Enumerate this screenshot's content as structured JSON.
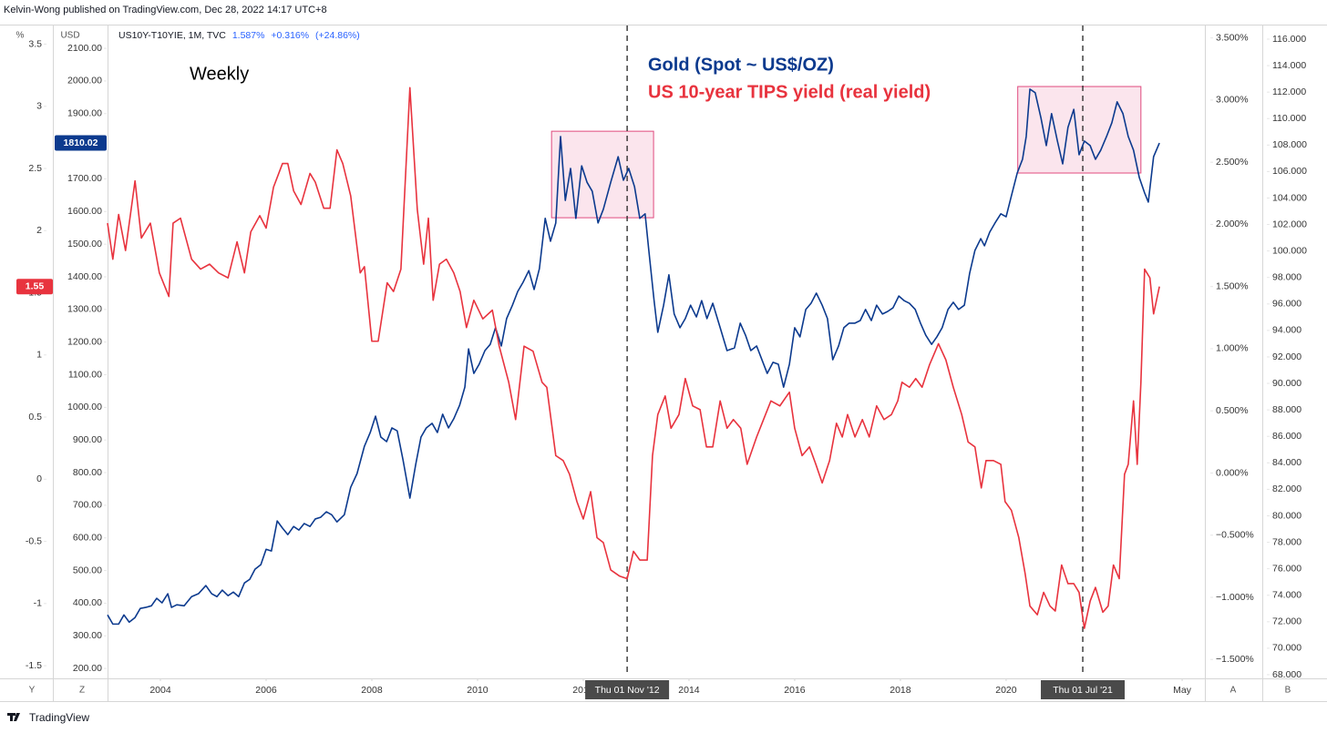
{
  "header": {
    "text": "Kelvin-Wong published on TradingView.com, Dec 28, 2022 14:17 UTC+8"
  },
  "symbol": {
    "name": "US10Y-T10YIE, 1M, TVC",
    "quote": [
      "1.587%",
      "+0.316%",
      "(+24.86%)"
    ]
  },
  "toolbar": {
    "left": [
      "Y",
      "Z"
    ],
    "right": [
      "A",
      "B"
    ],
    "brand": "TradingView"
  },
  "chart_data": {
    "type": "line",
    "annotation": "Weekly",
    "xlim": [
      2003.0,
      2023.76
    ],
    "xticks": [
      2004,
      2006,
      2008,
      2010,
      2012,
      2014,
      2016,
      2018,
      2020,
      {
        "value": 2023.33,
        "label": "May"
      }
    ],
    "grid": false,
    "axes": {
      "y_pct": {
        "title": "%",
        "lim": [
          -1.58,
          3.65
        ],
        "ticks": [
          -1.5,
          -1,
          -0.5,
          0,
          0.5,
          1,
          1.5,
          2,
          2.5,
          3,
          3.5
        ]
      },
      "y_usd": {
        "title": "USD",
        "lim": [
          178,
          2170
        ],
        "ticks": [
          {
            "value": 200,
            "label": "200.00"
          },
          {
            "value": 300,
            "label": "300.00"
          },
          {
            "value": 400,
            "label": "400.00"
          },
          {
            "value": 500,
            "label": "500.00"
          },
          {
            "value": 600,
            "label": "600.00"
          },
          {
            "value": 700,
            "label": "700.00"
          },
          {
            "value": 800,
            "label": "800.00"
          },
          {
            "value": 900,
            "label": "900.00"
          },
          {
            "value": 1000,
            "label": "1000.00"
          },
          {
            "value": 1100,
            "label": "1100.00"
          },
          {
            "value": 1200,
            "label": "1200.00"
          },
          {
            "value": 1300,
            "label": "1300.00"
          },
          {
            "value": 1400,
            "label": "1400.00"
          },
          {
            "value": 1500,
            "label": "1500.00"
          },
          {
            "value": 1600,
            "label": "1600.00"
          },
          {
            "value": 1700,
            "label": "1700.00"
          },
          {
            "value": 1800,
            "label": "1800.00"
          },
          {
            "value": 1900,
            "label": "1900.00"
          },
          {
            "value": 2000,
            "label": "2000.00"
          },
          {
            "value": 2100,
            "label": "2100.00"
          }
        ]
      },
      "y_right_pct": {
        "lim": [
          -1.63,
          3.6
        ],
        "ticks": [
          {
            "value": -1.5,
            "label": "−1.500%"
          },
          {
            "value": -1,
            "label": "−1.000%"
          },
          {
            "value": -0.5,
            "label": "−0.500%"
          },
          {
            "value": 0,
            "label": "0.000%"
          },
          {
            "value": 0.5,
            "label": "0.500%"
          },
          {
            "value": 1,
            "label": "1.000%"
          },
          {
            "value": 1.5,
            "label": "1.500%"
          },
          {
            "value": 2,
            "label": "2.000%"
          },
          {
            "value": 2.5,
            "label": "2.500%"
          },
          {
            "value": 3,
            "label": "3.000%"
          },
          {
            "value": 3.5,
            "label": "3.500%"
          }
        ]
      },
      "y_right_index": {
        "lim": [
          67.93,
          117.03
        ],
        "ticks": [
          {
            "value": 68,
            "label": "68.000"
          },
          {
            "value": 70,
            "label": "70.000"
          },
          {
            "value": 72,
            "label": "72.000"
          },
          {
            "value": 74,
            "label": "74.000"
          },
          {
            "value": 76,
            "label": "76.000"
          },
          {
            "value": 78,
            "label": "78.000"
          },
          {
            "value": 80,
            "label": "80.000"
          },
          {
            "value": 82,
            "label": "82.000"
          },
          {
            "value": 84,
            "label": "84.000"
          },
          {
            "value": 86,
            "label": "86.000"
          },
          {
            "value": 88,
            "label": "88.000"
          },
          {
            "value": 90,
            "label": "90.000"
          },
          {
            "value": 92,
            "label": "92.000"
          },
          {
            "value": 94,
            "label": "94.000"
          },
          {
            "value": 96,
            "label": "96.000"
          },
          {
            "value": 98,
            "label": "98.000"
          },
          {
            "value": 100,
            "label": "100.000"
          },
          {
            "value": 102,
            "label": "102.000"
          },
          {
            "value": 104,
            "label": "104.000"
          },
          {
            "value": 106,
            "label": "106.000"
          },
          {
            "value": 108,
            "label": "108.000"
          },
          {
            "value": 110,
            "label": "110.000"
          },
          {
            "value": 112,
            "label": "112.000"
          },
          {
            "value": 114,
            "label": "114.000"
          },
          {
            "value": 116,
            "label": "116.000"
          }
        ]
      }
    },
    "vlines": [
      {
        "x": 2012.83,
        "label": "Thu 01 Nov '12"
      },
      {
        "x": 2021.45,
        "label": "Thu 01 Jul '21"
      }
    ],
    "highlight_boxes": [
      {
        "xlim": [
          2011.4,
          2013.33
        ],
        "ylim": [
          1581,
          1846
        ]
      },
      {
        "xlim": [
          2020.22,
          2022.55
        ],
        "ylim": [
          1718,
          1983
        ]
      }
    ],
    "series": [
      {
        "name": "Gold (Spot ~ US$/OZ)",
        "color": "#0c3a8e",
        "axis": "y_usd",
        "last_label": "1810.02",
        "x": [
          2003.0,
          2003.1,
          2003.21,
          2003.31,
          2003.41,
          2003.52,
          2003.62,
          2003.72,
          2003.83,
          2003.93,
          2004.03,
          2004.14,
          2004.21,
          2004.31,
          2004.45,
          2004.59,
          2004.72,
          2004.86,
          2004.97,
          2005.07,
          2005.17,
          2005.28,
          2005.38,
          2005.48,
          2005.59,
          2005.69,
          2005.79,
          2005.9,
          2006.0,
          2006.1,
          2006.21,
          2006.31,
          2006.41,
          2006.52,
          2006.62,
          2006.72,
          2006.83,
          2006.93,
          2007.03,
          2007.14,
          2007.24,
          2007.34,
          2007.48,
          2007.6,
          2007.72,
          2007.86,
          2007.97,
          2008.07,
          2008.17,
          2008.28,
          2008.38,
          2008.48,
          2008.59,
          2008.72,
          2008.83,
          2008.93,
          2009.03,
          2009.14,
          2009.24,
          2009.34,
          2009.45,
          2009.55,
          2009.66,
          2009.76,
          2009.83,
          2009.93,
          2010.03,
          2010.14,
          2010.24,
          2010.34,
          2010.45,
          2010.55,
          2010.66,
          2010.76,
          2010.86,
          2010.97,
          2011.07,
          2011.17,
          2011.28,
          2011.38,
          2011.48,
          2011.57,
          2011.66,
          2011.76,
          2011.86,
          2011.97,
          2012.07,
          2012.17,
          2012.28,
          2012.38,
          2012.52,
          2012.66,
          2012.76,
          2012.86,
          2012.97,
          2013.07,
          2013.17,
          2013.24,
          2013.34,
          2013.41,
          2013.52,
          2013.62,
          2013.72,
          2013.83,
          2013.93,
          2014.03,
          2014.14,
          2014.24,
          2014.34,
          2014.45,
          2014.59,
          2014.72,
          2014.86,
          2014.97,
          2015.07,
          2015.17,
          2015.28,
          2015.38,
          2015.48,
          2015.59,
          2015.69,
          2015.79,
          2015.9,
          2016.0,
          2016.1,
          2016.21,
          2016.31,
          2016.41,
          2016.52,
          2016.62,
          2016.72,
          2016.83,
          2016.93,
          2017.03,
          2017.14,
          2017.24,
          2017.34,
          2017.45,
          2017.55,
          2017.66,
          2017.76,
          2017.86,
          2017.97,
          2018.07,
          2018.17,
          2018.28,
          2018.38,
          2018.48,
          2018.59,
          2018.69,
          2018.79,
          2018.9,
          2019.0,
          2019.1,
          2019.21,
          2019.31,
          2019.41,
          2019.52,
          2019.59,
          2019.69,
          2019.79,
          2019.9,
          2020.0,
          2020.1,
          2020.21,
          2020.31,
          2020.38,
          2020.45,
          2020.55,
          2020.66,
          2020.76,
          2020.86,
          2020.97,
          2021.07,
          2021.17,
          2021.28,
          2021.38,
          2021.48,
          2021.59,
          2021.69,
          2021.79,
          2021.9,
          2022.0,
          2022.1,
          2022.21,
          2022.31,
          2022.41,
          2022.52,
          2022.62,
          2022.69,
          2022.79,
          2022.9
        ],
        "values": [
          364,
          336,
          336,
          364,
          342,
          356,
          384,
          387,
          392,
          415,
          401,
          429,
          387,
          395,
          392,
          420,
          429,
          454,
          429,
          420,
          440,
          423,
          434,
          420,
          462,
          473,
          504,
          518,
          565,
          560,
          652,
          630,
          610,
          635,
          624,
          644,
          635,
          658,
          663,
          680,
          671,
          649,
          671,
          755,
          797,
          881,
          923,
          973,
          909,
          895,
          937,
          928,
          839,
          722,
          825,
          909,
          937,
          951,
          923,
          979,
          937,
          965,
          1006,
          1062,
          1179,
          1104,
          1132,
          1174,
          1193,
          1244,
          1188,
          1272,
          1313,
          1355,
          1383,
          1419,
          1361,
          1425,
          1579,
          1509,
          1565,
          1830,
          1634,
          1732,
          1579,
          1740,
          1690,
          1662,
          1565,
          1607,
          1690,
          1768,
          1696,
          1732,
          1676,
          1579,
          1593,
          1481,
          1327,
          1230,
          1313,
          1406,
          1286,
          1244,
          1272,
          1313,
          1277,
          1327,
          1272,
          1319,
          1244,
          1174,
          1182,
          1258,
          1221,
          1174,
          1188,
          1146,
          1104,
          1138,
          1132,
          1062,
          1132,
          1244,
          1216,
          1300,
          1319,
          1350,
          1313,
          1272,
          1146,
          1188,
          1244,
          1258,
          1258,
          1266,
          1300,
          1266,
          1313,
          1286,
          1294,
          1305,
          1341,
          1327,
          1319,
          1300,
          1258,
          1221,
          1193,
          1216,
          1244,
          1300,
          1322,
          1300,
          1313,
          1411,
          1481,
          1517,
          1495,
          1537,
          1565,
          1593,
          1584,
          1648,
          1718,
          1760,
          1830,
          1975,
          1964,
          1886,
          1802,
          1900,
          1816,
          1746,
          1858,
          1913,
          1774,
          1816,
          1802,
          1760,
          1788,
          1830,
          1872,
          1936,
          1900,
          1830,
          1788,
          1704,
          1657,
          1629,
          1768,
          1810.02
        ]
      },
      {
        "name": "US 10-year TIPS yield (real yield)",
        "color": "#e8333e",
        "axis": "y_pct",
        "last_label": "1.55",
        "x": [
          2003.0,
          2003.1,
          2003.21,
          2003.34,
          2003.52,
          2003.64,
          2003.81,
          2003.98,
          2004.16,
          2004.24,
          2004.38,
          2004.59,
          2004.76,
          2004.93,
          2005.1,
          2005.28,
          2005.45,
          2005.59,
          2005.71,
          2005.88,
          2006.0,
          2006.14,
          2006.31,
          2006.41,
          2006.52,
          2006.66,
          2006.83,
          2006.93,
          2007.09,
          2007.21,
          2007.34,
          2007.45,
          2007.6,
          2007.78,
          2007.86,
          2008.0,
          2008.12,
          2008.29,
          2008.41,
          2008.55,
          2008.72,
          2008.86,
          2008.98,
          2009.07,
          2009.16,
          2009.28,
          2009.41,
          2009.55,
          2009.67,
          2009.79,
          2009.93,
          2010.1,
          2010.28,
          2010.41,
          2010.59,
          2010.72,
          2010.88,
          2011.05,
          2011.22,
          2011.31,
          2011.48,
          2011.62,
          2011.74,
          2011.88,
          2012.0,
          2012.14,
          2012.26,
          2012.38,
          2012.52,
          2012.69,
          2012.83,
          2012.95,
          2013.07,
          2013.21,
          2013.31,
          2013.41,
          2013.55,
          2013.66,
          2013.81,
          2013.93,
          2014.07,
          2014.21,
          2014.33,
          2014.45,
          2014.59,
          2014.72,
          2014.84,
          2014.98,
          2015.1,
          2015.28,
          2015.41,
          2015.55,
          2015.72,
          2015.9,
          2016.0,
          2016.14,
          2016.28,
          2016.4,
          2016.52,
          2016.66,
          2016.79,
          2016.9,
          2017.0,
          2017.14,
          2017.28,
          2017.41,
          2017.55,
          2017.69,
          2017.83,
          2017.95,
          2018.03,
          2018.17,
          2018.29,
          2018.41,
          2018.55,
          2018.72,
          2018.86,
          2019.0,
          2019.16,
          2019.28,
          2019.41,
          2019.53,
          2019.62,
          2019.76,
          2019.9,
          2019.98,
          2020.1,
          2020.24,
          2020.36,
          2020.45,
          2020.59,
          2020.71,
          2020.83,
          2020.93,
          2021.05,
          2021.17,
          2021.28,
          2021.38,
          2021.48,
          2021.59,
          2021.69,
          2021.83,
          2021.93,
          2022.03,
          2022.14,
          2022.24,
          2022.31,
          2022.41,
          2022.48,
          2022.55,
          2022.62,
          2022.72,
          2022.79,
          2022.9
        ],
        "values": [
          2.06,
          1.77,
          2.13,
          1.84,
          2.4,
          1.94,
          2.06,
          1.66,
          1.47,
          2.06,
          2.1,
          1.77,
          1.69,
          1.73,
          1.66,
          1.62,
          1.91,
          1.66,
          1.99,
          2.12,
          2.02,
          2.35,
          2.54,
          2.54,
          2.32,
          2.21,
          2.46,
          2.39,
          2.18,
          2.18,
          2.65,
          2.54,
          2.28,
          1.66,
          1.71,
          1.11,
          1.11,
          1.58,
          1.51,
          1.69,
          3.15,
          2.17,
          1.73,
          2.1,
          1.44,
          1.73,
          1.77,
          1.66,
          1.51,
          1.22,
          1.44,
          1.29,
          1.36,
          1.07,
          0.78,
          0.48,
          1.07,
          1.03,
          0.78,
          0.74,
          0.19,
          0.15,
          0.04,
          -0.18,
          -0.32,
          -0.1,
          -0.47,
          -0.51,
          -0.73,
          -0.78,
          -0.8,
          -0.58,
          -0.65,
          -0.65,
          0.19,
          0.52,
          0.67,
          0.41,
          0.52,
          0.81,
          0.59,
          0.56,
          0.26,
          0.26,
          0.63,
          0.41,
          0.48,
          0.41,
          0.12,
          0.34,
          0.48,
          0.63,
          0.59,
          0.7,
          0.41,
          0.19,
          0.26,
          0.12,
          -0.03,
          0.15,
          0.45,
          0.34,
          0.52,
          0.34,
          0.48,
          0.34,
          0.59,
          0.48,
          0.52,
          0.63,
          0.78,
          0.74,
          0.81,
          0.74,
          0.92,
          1.09,
          0.96,
          0.74,
          0.52,
          0.3,
          0.26,
          -0.07,
          0.15,
          0.15,
          0.12,
          -0.18,
          -0.25,
          -0.47,
          -0.76,
          -1.02,
          -1.09,
          -0.91,
          -1.02,
          -1.06,
          -0.69,
          -0.84,
          -0.84,
          -0.91,
          -1.2,
          -0.98,
          -0.87,
          -1.07,
          -1.02,
          -0.69,
          -0.8,
          0.04,
          0.12,
          0.63,
          0.12,
          0.78,
          1.69,
          1.62,
          1.33,
          1.55
        ]
      }
    ]
  }
}
